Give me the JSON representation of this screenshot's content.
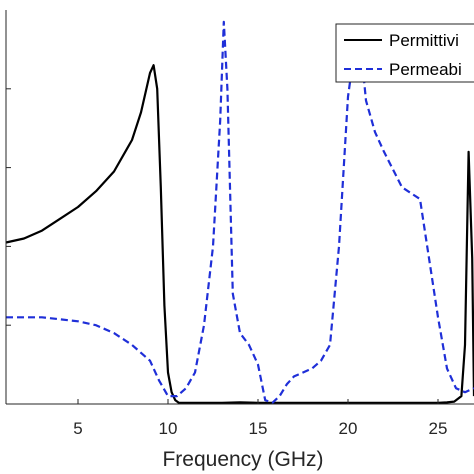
{
  "chart_data": {
    "type": "line",
    "title": "",
    "xlabel": "Frequency (GHz)",
    "ylabel": "",
    "xlim": [
      1,
      27
    ],
    "ylim": [
      0,
      1
    ],
    "xticks": [
      5,
      10,
      15,
      20,
      25
    ],
    "xtick_labels": [
      "5",
      "10",
      "15",
      "20",
      "25"
    ],
    "grid": false,
    "legend": {
      "position": "top-right"
    },
    "series": [
      {
        "name": "Permittivi",
        "color": "#000000",
        "style": "solid",
        "x": [
          1,
          2,
          3,
          4,
          5,
          6,
          7,
          8,
          8.5,
          9,
          9.2,
          9.4,
          9.6,
          9.8,
          10.0,
          10.2,
          10.4,
          10.6,
          11,
          12,
          13,
          14,
          15,
          16,
          17,
          18,
          19,
          20,
          21,
          22,
          23,
          24,
          25,
          25.5,
          25.9,
          26.3,
          26.5,
          26.7,
          26.9,
          27
        ],
        "y": [
          0.41,
          0.42,
          0.44,
          0.47,
          0.5,
          0.54,
          0.59,
          0.67,
          0.74,
          0.84,
          0.86,
          0.8,
          0.55,
          0.25,
          0.08,
          0.03,
          0.01,
          0.003,
          0.003,
          0.003,
          0.003,
          0.004,
          0.003,
          0.003,
          0.003,
          0.003,
          0.003,
          0.003,
          0.003,
          0.003,
          0.003,
          0.003,
          0.003,
          0.004,
          0.006,
          0.02,
          0.15,
          0.64,
          0.37,
          0.02
        ]
      },
      {
        "name": "Permeabi",
        "color": "#1f2fd8",
        "style": "dashed",
        "x": [
          1,
          3,
          5,
          6,
          7,
          8,
          9,
          9.5,
          10,
          10.5,
          11,
          11.5,
          12,
          12.5,
          12.9,
          13.1,
          13.3,
          13.6,
          14,
          14.5,
          15,
          15.4,
          15.8,
          16.2,
          16.6,
          17,
          17.5,
          18,
          18.5,
          19,
          19.5,
          20,
          20.3,
          20.7,
          21,
          21.5,
          22,
          23,
          24,
          25,
          25.5,
          26,
          26.5,
          27
        ],
        "y": [
          0.22,
          0.22,
          0.21,
          0.2,
          0.18,
          0.15,
          0.11,
          0.06,
          0.02,
          0.02,
          0.04,
          0.08,
          0.2,
          0.4,
          0.72,
          0.97,
          0.8,
          0.28,
          0.18,
          0.15,
          0.1,
          0.01,
          0.003,
          0.02,
          0.05,
          0.07,
          0.08,
          0.09,
          0.11,
          0.15,
          0.4,
          0.78,
          0.88,
          0.91,
          0.77,
          0.69,
          0.64,
          0.55,
          0.52,
          0.22,
          0.09,
          0.04,
          0.03,
          0.04
        ]
      }
    ]
  }
}
